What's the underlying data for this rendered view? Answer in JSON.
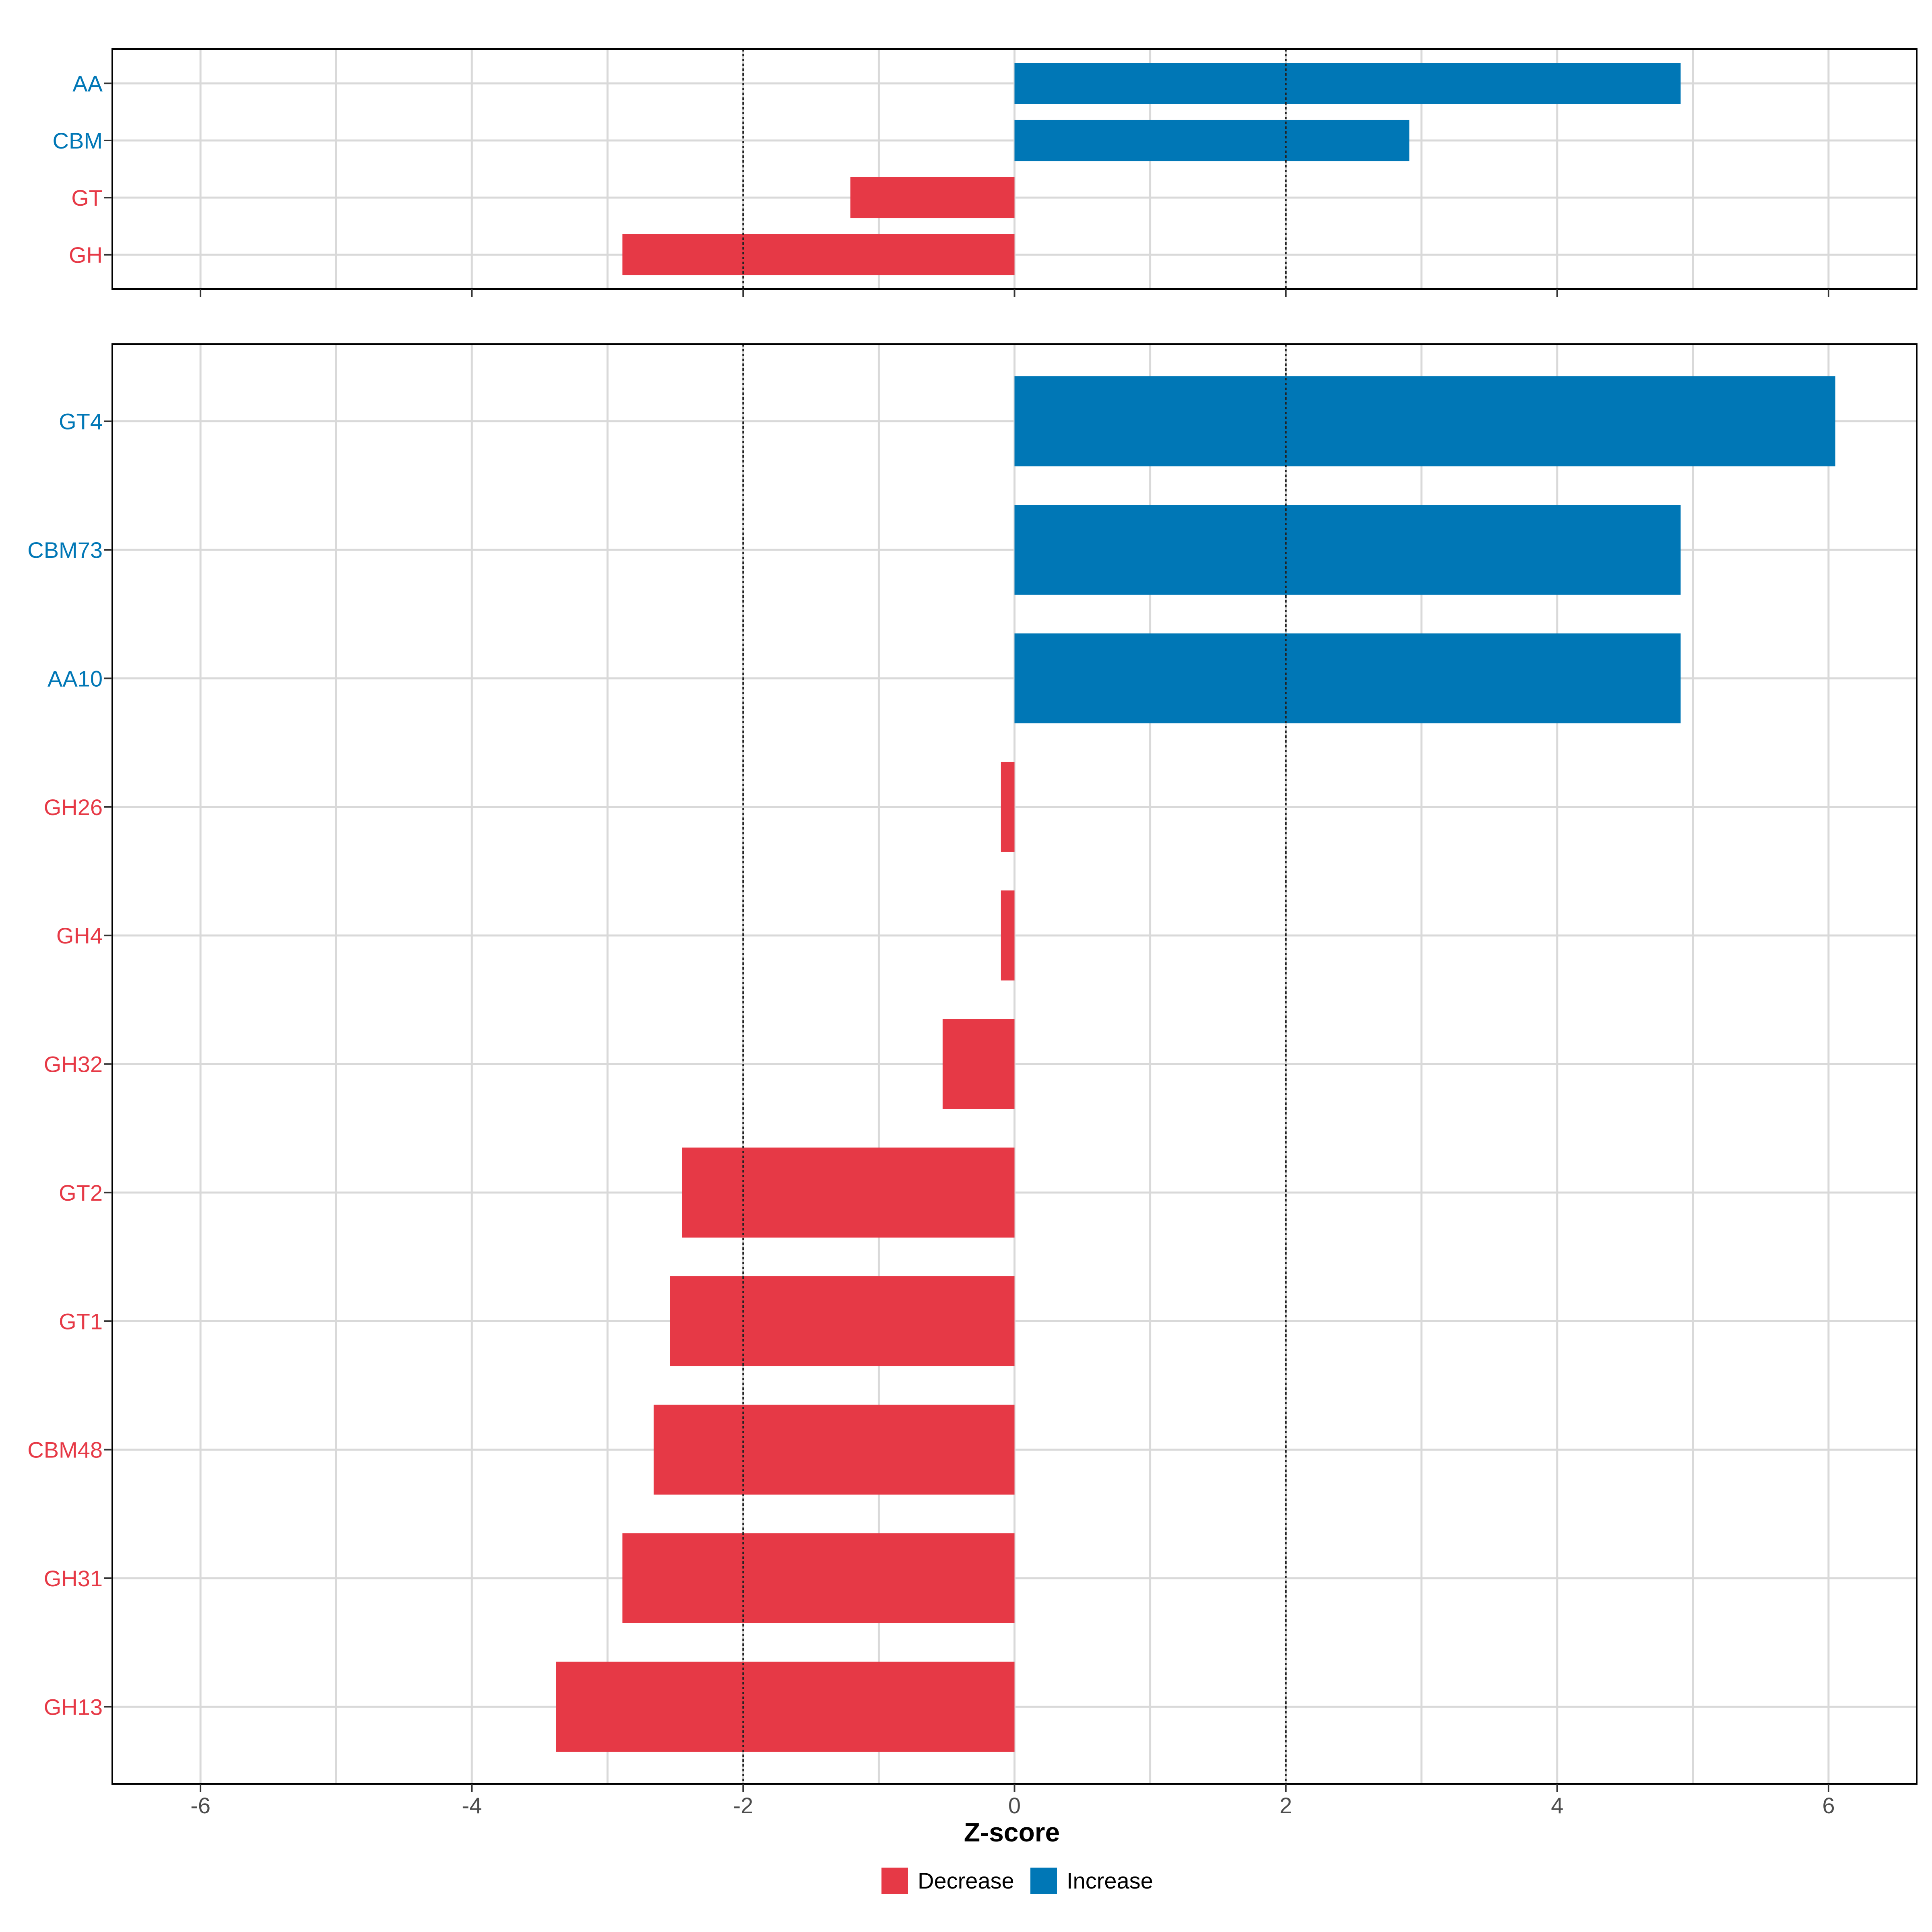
{
  "chart_data": [
    {
      "type": "bar",
      "orientation": "horizontal",
      "categories": [
        "AA",
        "CBM",
        "GT",
        "GH"
      ],
      "values": [
        4.91,
        2.91,
        -1.21,
        -2.89
      ],
      "xlim": [
        -6.65,
        6.65
      ],
      "grid": true,
      "reference_lines": [
        -2,
        2
      ]
    },
    {
      "type": "bar",
      "orientation": "horizontal",
      "categories": [
        "GT4",
        "CBM73",
        "AA10",
        "GH26",
        "GH4",
        "GH32",
        "GT2",
        "GT1",
        "CBM48",
        "GH31",
        "GH13"
      ],
      "values": [
        6.05,
        4.91,
        4.91,
        -0.1,
        -0.1,
        -0.53,
        -2.45,
        -2.54,
        -2.66,
        -2.89,
        -3.38
      ],
      "xlim": [
        -6.65,
        6.65
      ],
      "xticks": [
        "-6",
        "-4",
        "-2",
        "0",
        "2",
        "4",
        "6"
      ],
      "xlabel": "Z-score",
      "grid": true,
      "reference_lines": [
        -2,
        2
      ]
    }
  ],
  "legend": {
    "placement": "bottom",
    "items": [
      {
        "label": "Decrease",
        "color": "#E63946"
      },
      {
        "label": "Increase",
        "color": "#0077B6"
      }
    ]
  },
  "colors": {
    "increase": "#0077B6",
    "decrease": "#E63946",
    "grid": "#D9D9D9"
  }
}
